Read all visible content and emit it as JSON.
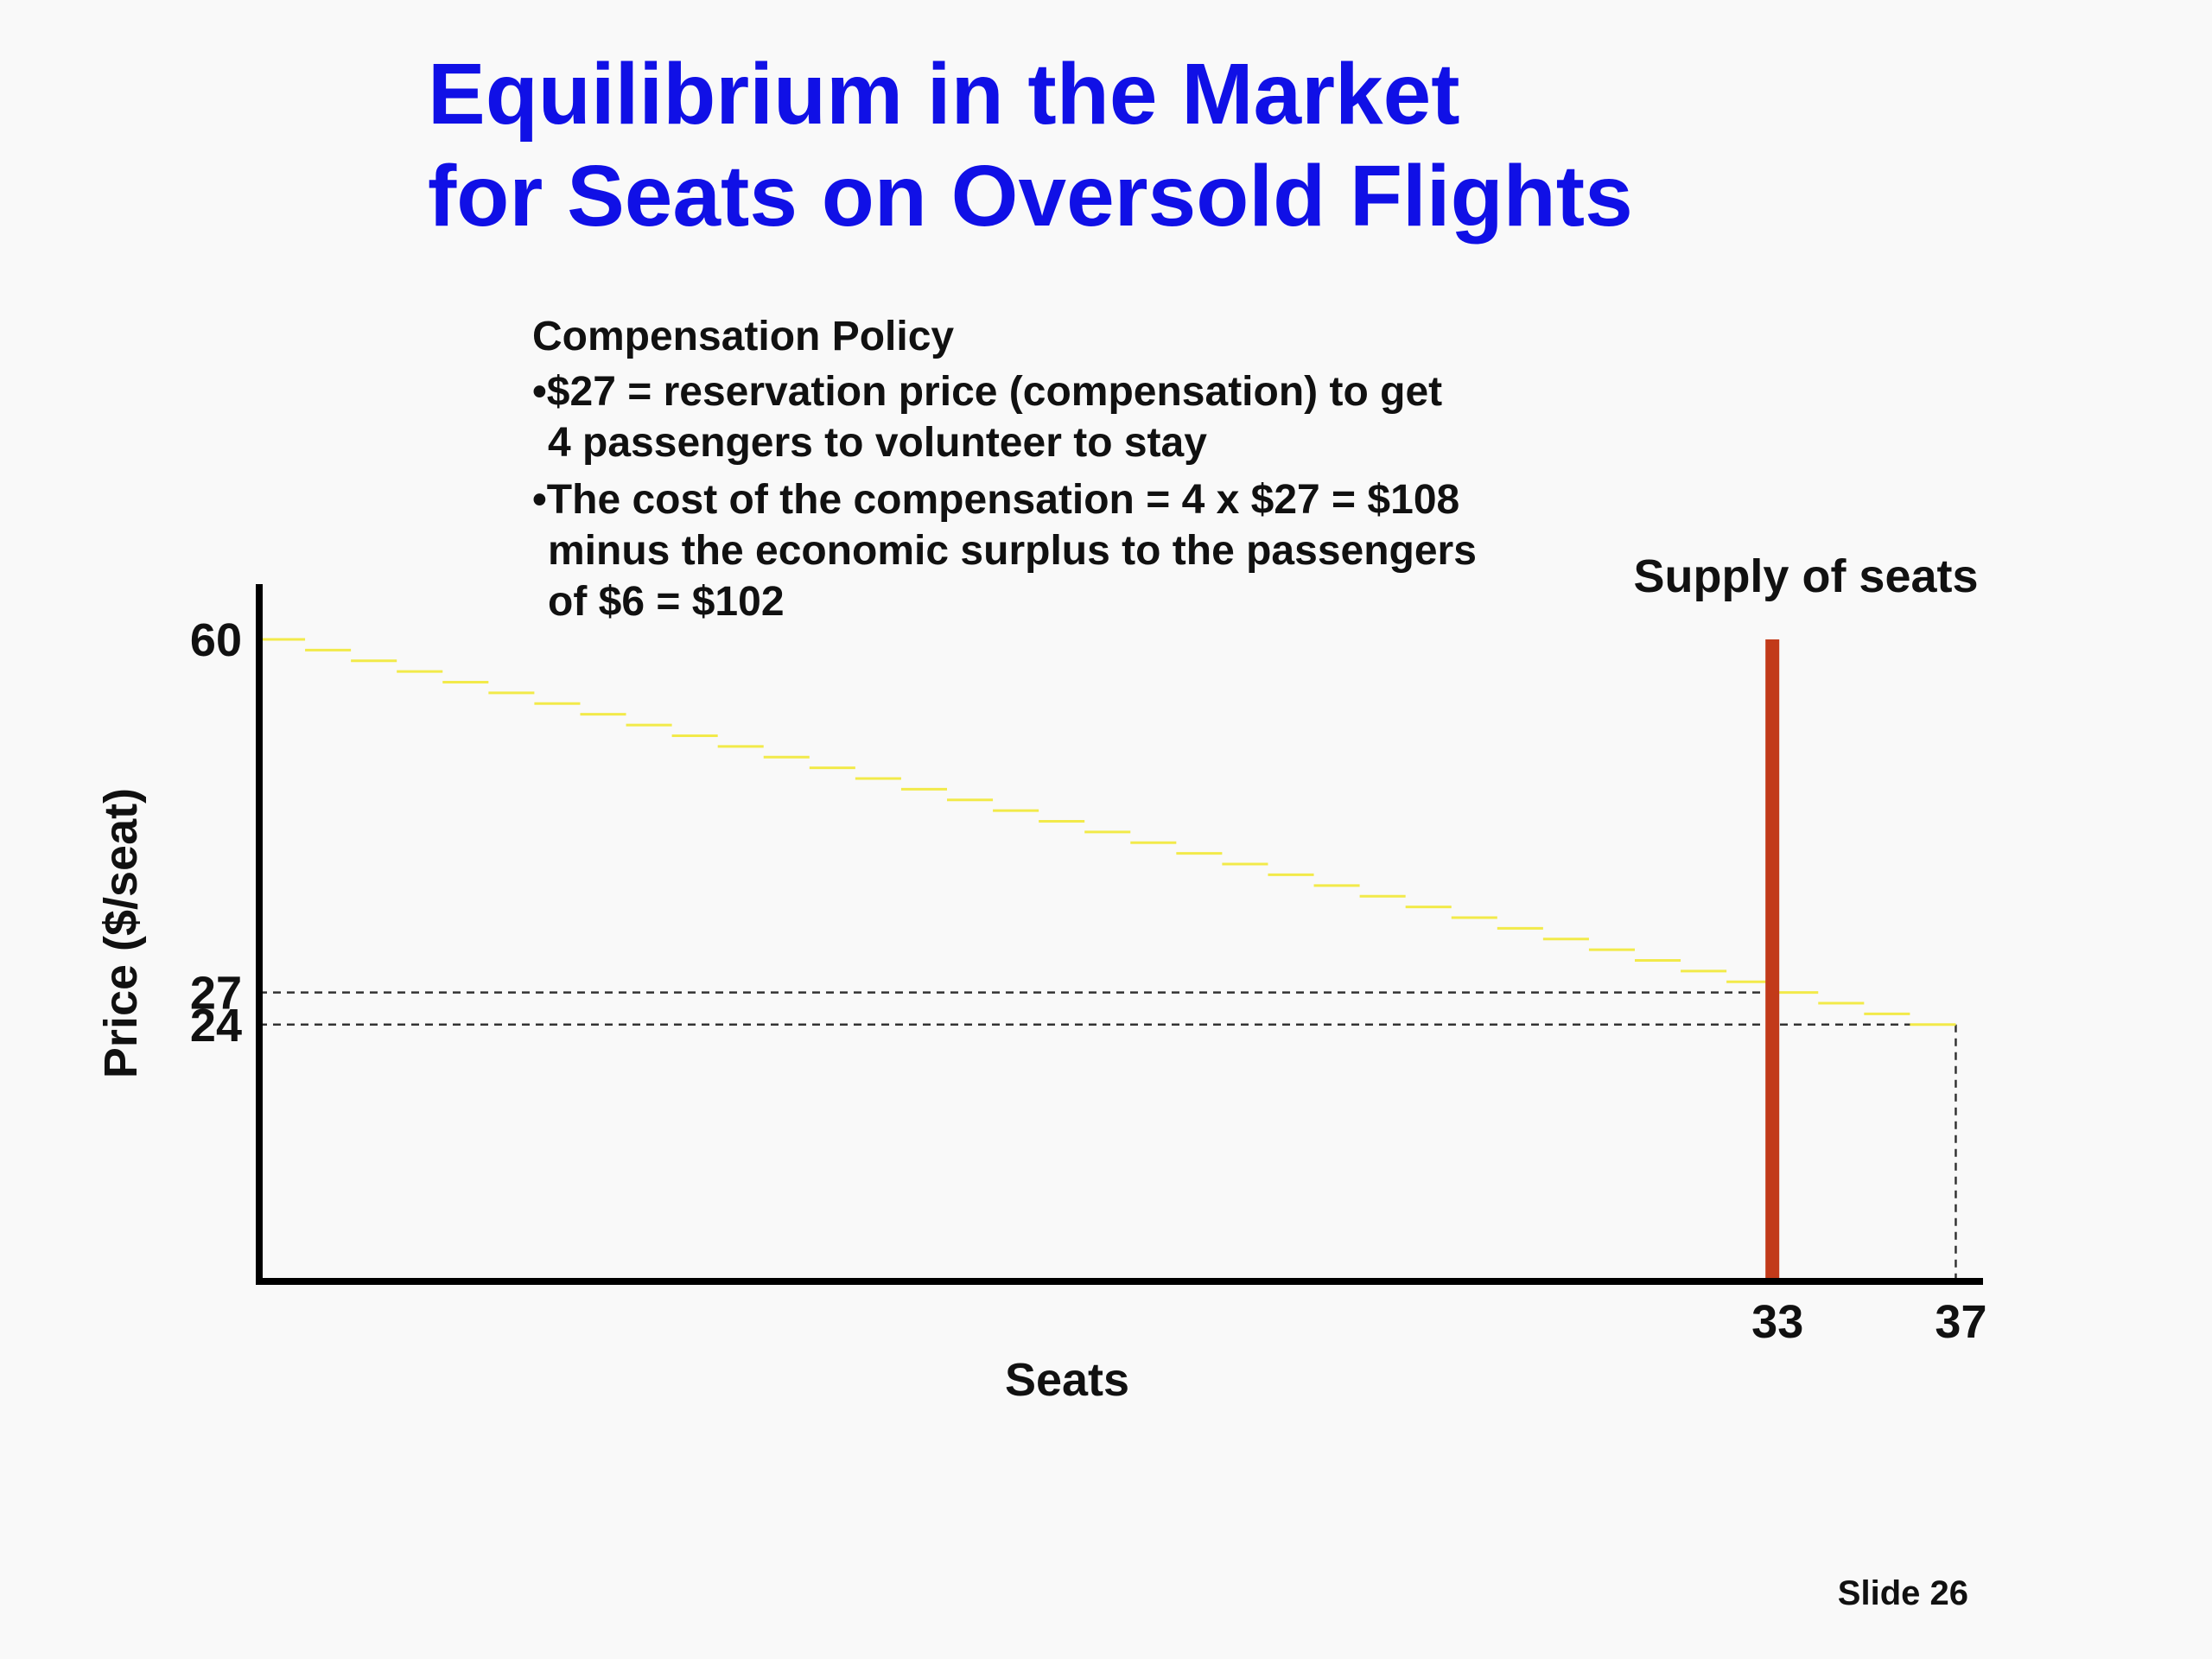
{
  "slide": {
    "title_lines": [
      "Equilibrium in the Market",
      "for Seats on Oversold Flights"
    ],
    "slide_number": "Slide 26"
  },
  "policy": {
    "heading": "Compensation Policy",
    "bullets": [
      {
        "line1": "•$27 = reservation price (compensation) to get",
        "line2": "4 passengers to volunteer to stay"
      },
      {
        "line1": "•The cost of the compensation = 4 x $27 = $108",
        "line2": "minus the economic surplus to the passengers",
        "line3": "of $6 = $102"
      }
    ]
  },
  "colors": {
    "title": "#1010e6",
    "demand": "#f2ea4a",
    "supply": "#c23a1a",
    "axis": "#000000",
    "guide": "#333333"
  },
  "chart_data": {
    "type": "line",
    "title": "",
    "xlabel": "Seats",
    "ylabel": "Price ($/seat)",
    "xlim": [
      0,
      37.5
    ],
    "ylim": [
      0,
      60
    ],
    "x_ticks": [
      33,
      37
    ],
    "y_ticks": [
      60,
      27,
      24
    ],
    "grid": false,
    "series": [
      {
        "style": "step",
        "x": [
          0,
          37
        ],
        "y": [
          60,
          24
        ]
      },
      {
        "name": "Supply of seats",
        "style": "vertical",
        "x": [
          33,
          33
        ],
        "y": [
          0,
          60
        ]
      }
    ],
    "guides": [
      {
        "kind": "horizontal-dashed",
        "y": 27,
        "x_to": 33
      },
      {
        "kind": "horizontal-dashed",
        "y": 24,
        "x_to": 37
      },
      {
        "kind": "vertical-dashed",
        "x": 37,
        "y_to": 24
      }
    ]
  }
}
